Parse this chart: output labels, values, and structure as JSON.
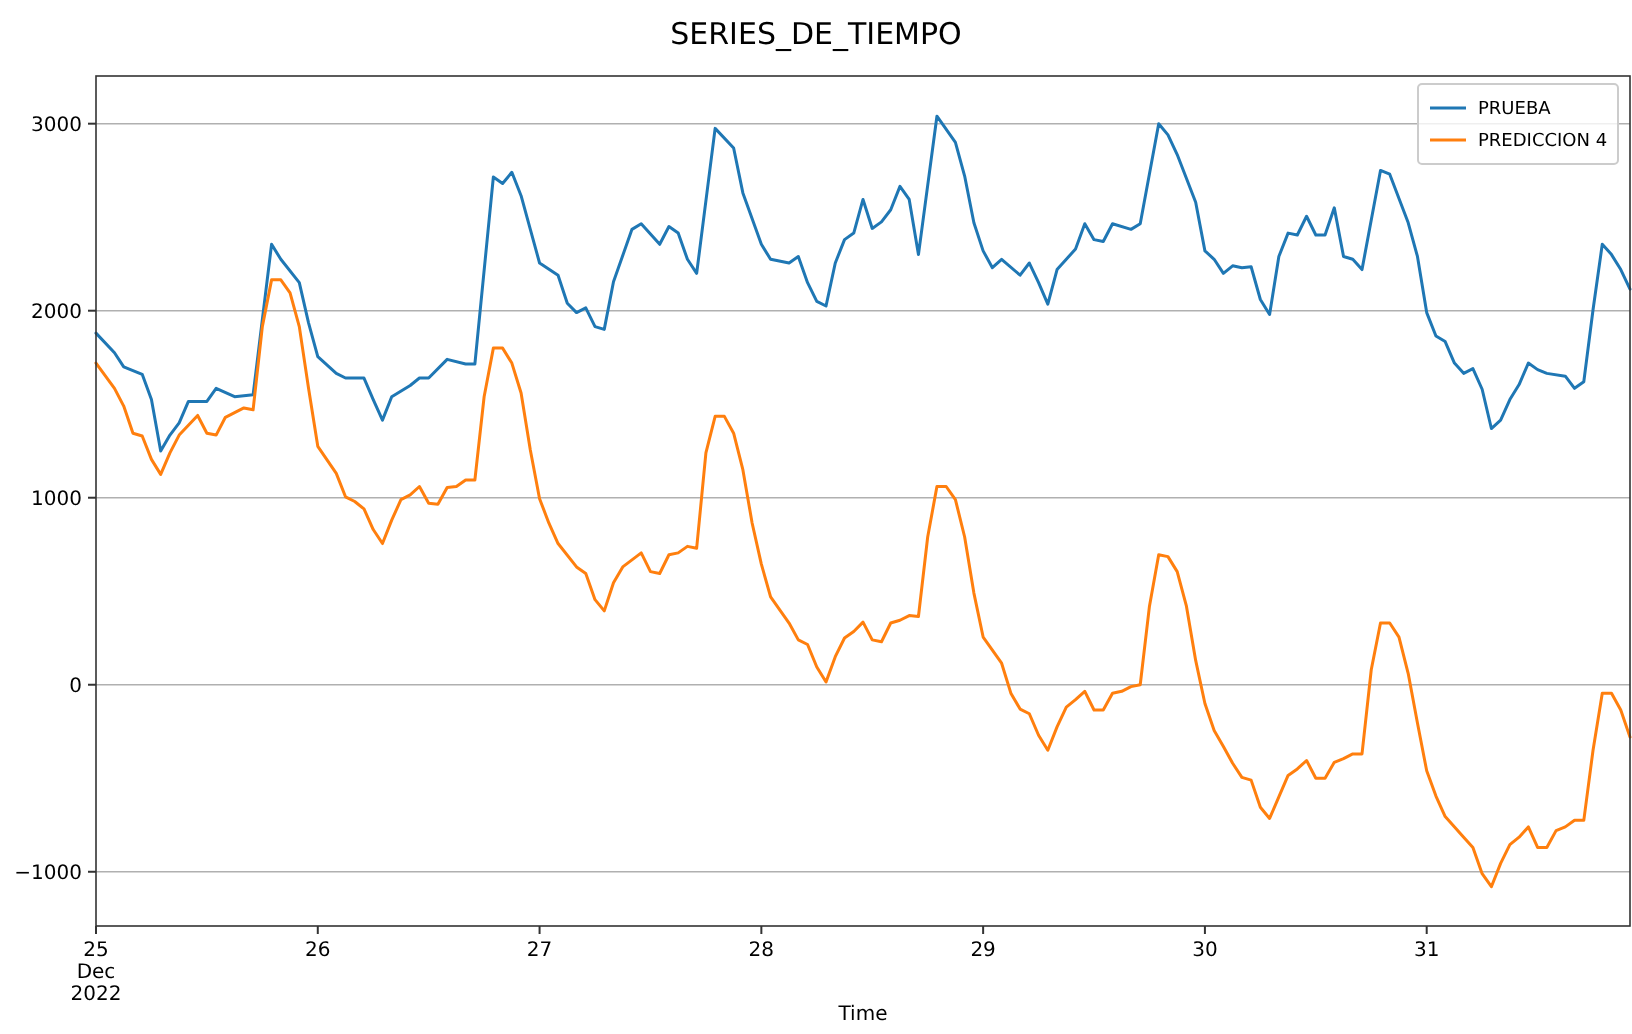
{
  "chart_data": {
    "type": "line",
    "title": "SERIES_DE_TIEMPO",
    "xlabel": "Time",
    "xlim": [
      "2022-12-25T00:00",
      "2022-12-31T22:00"
    ],
    "xticks": [
      {
        "value": "2022-12-25",
        "label": "25\nDec\n2022"
      },
      {
        "value": "2022-12-26",
        "label": "26"
      },
      {
        "value": "2022-12-27",
        "label": "27"
      },
      {
        "value": "2022-12-28",
        "label": "28"
      },
      {
        "value": "2022-12-29",
        "label": "29"
      },
      {
        "value": "2022-12-30",
        "label": "30"
      },
      {
        "value": "2022-12-31",
        "label": "31"
      }
    ],
    "ylim": [
      -1290,
      3255
    ],
    "yticks": [
      -1000,
      0,
      1000,
      2000,
      3000
    ],
    "grid": "y",
    "legend": "top right",
    "line_style": "solid",
    "marker": "none",
    "series": [
      {
        "name": "PRUEBA",
        "color": "#1f77b4",
        "x": [
          "2022-12-25T00:00",
          "2022-12-25T02:00",
          "2022-12-25T03:00",
          "2022-12-25T05:00",
          "2022-12-25T06:00",
          "2022-12-25T07:00",
          "2022-12-25T08:00",
          "2022-12-25T09:00",
          "2022-12-25T10:00",
          "2022-12-25T12:00",
          "2022-12-25T13:00",
          "2022-12-25T15:00",
          "2022-12-25T17:00",
          "2022-12-25T19:00",
          "2022-12-25T20:00",
          "2022-12-25T22:00",
          "2022-12-25T23:00",
          "2022-12-26T00:00",
          "2022-12-26T02:00",
          "2022-12-26T03:00",
          "2022-12-26T05:00",
          "2022-12-26T06:00",
          "2022-12-26T07:00",
          "2022-12-26T08:00",
          "2022-12-26T10:00",
          "2022-12-26T11:00",
          "2022-12-26T12:00",
          "2022-12-26T14:00",
          "2022-12-26T16:00",
          "2022-12-26T17:00",
          "2022-12-26T19:00",
          "2022-12-26T20:00",
          "2022-12-26T21:00",
          "2022-12-26T22:00",
          "2022-12-26T23:00",
          "2022-12-27T00:00",
          "2022-12-27T02:00",
          "2022-12-27T03:00",
          "2022-12-27T04:00",
          "2022-12-27T05:00",
          "2022-12-27T06:00",
          "2022-12-27T07:00",
          "2022-12-27T08:00",
          "2022-12-27T10:00",
          "2022-12-27T11:00",
          "2022-12-27T13:00",
          "2022-12-27T14:00",
          "2022-12-27T15:00",
          "2022-12-27T16:00",
          "2022-12-27T17:00",
          "2022-12-27T19:00",
          "2022-12-27T21:00",
          "2022-12-27T22:00",
          "2022-12-28T00:00",
          "2022-12-28T01:00",
          "2022-12-28T03:00",
          "2022-12-28T04:00",
          "2022-12-28T05:00",
          "2022-12-28T06:00",
          "2022-12-28T07:00",
          "2022-12-28T08:00",
          "2022-12-28T09:00",
          "2022-12-28T10:00",
          "2022-12-28T11:00",
          "2022-12-28T12:00",
          "2022-12-28T13:00",
          "2022-12-28T14:00",
          "2022-12-28T15:00",
          "2022-12-28T16:00",
          "2022-12-28T17:00",
          "2022-12-28T19:00",
          "2022-12-28T21:00",
          "2022-12-28T22:00",
          "2022-12-28T23:00",
          "2022-12-29T00:00",
          "2022-12-29T01:00",
          "2022-12-29T02:00",
          "2022-12-29T04:00",
          "2022-12-29T05:00",
          "2022-12-29T06:00",
          "2022-12-29T07:00",
          "2022-12-29T08:00",
          "2022-12-29T10:00",
          "2022-12-29T11:00",
          "2022-12-29T12:00",
          "2022-12-29T13:00",
          "2022-12-29T14:00",
          "2022-12-29T16:00",
          "2022-12-29T17:00",
          "2022-12-29T19:00",
          "2022-12-29T20:00",
          "2022-12-29T21:00",
          "2022-12-29T23:00",
          "2022-12-30T00:00",
          "2022-12-30T01:00",
          "2022-12-30T02:00",
          "2022-12-30T03:00",
          "2022-12-30T04:00",
          "2022-12-30T05:00",
          "2022-12-30T06:00",
          "2022-12-30T07:00",
          "2022-12-30T08:00",
          "2022-12-30T09:00",
          "2022-12-30T10:00",
          "2022-12-30T11:00",
          "2022-12-30T12:00",
          "2022-12-30T13:00",
          "2022-12-30T14:00",
          "2022-12-30T15:00",
          "2022-12-30T16:00",
          "2022-12-30T17:00",
          "2022-12-30T19:00",
          "2022-12-30T20:00",
          "2022-12-30T22:00",
          "2022-12-30T23:00",
          "2022-12-31T00:00",
          "2022-12-31T01:00",
          "2022-12-31T02:00",
          "2022-12-31T03:00",
          "2022-12-31T04:00",
          "2022-12-31T05:00",
          "2022-12-31T06:00",
          "2022-12-31T07:00",
          "2022-12-31T08:00",
          "2022-12-31T09:00",
          "2022-12-31T10:00",
          "2022-12-31T11:00",
          "2022-12-31T12:00",
          "2022-12-31T13:00",
          "2022-12-31T15:00",
          "2022-12-31T16:00",
          "2022-12-31T17:00",
          "2022-12-31T18:00",
          "2022-12-31T19:00",
          "2022-12-31T20:00",
          "2022-12-31T21:00",
          "2022-12-31T22:00"
        ],
        "values": [
          1880,
          1775,
          1700,
          1660,
          1525,
          1250,
          1335,
          1400,
          1515,
          1515,
          1585,
          1540,
          1550,
          2355,
          2275,
          2150,
          1935,
          1755,
          1665,
          1640,
          1640,
          1525,
          1415,
          1540,
          1600,
          1640,
          1640,
          1740,
          1715,
          1715,
          2715,
          2680,
          2740,
          2615,
          2435,
          2255,
          2190,
          2040,
          1990,
          2015,
          1915,
          1900,
          2155,
          2435,
          2465,
          2355,
          2450,
          2415,
          2275,
          2200,
          2975,
          2870,
          2630,
          2355,
          2275,
          2255,
          2290,
          2150,
          2050,
          2025,
          2255,
          2380,
          2415,
          2595,
          2440,
          2475,
          2540,
          2665,
          2595,
          2300,
          3040,
          2900,
          2720,
          2470,
          2320,
          2230,
          2275,
          2190,
          2255,
          2150,
          2035,
          2220,
          2330,
          2465,
          2380,
          2370,
          2465,
          2435,
          2465,
          3000,
          2940,
          2835,
          2580,
          2320,
          2275,
          2200,
          2240,
          2230,
          2235,
          2060,
          1980,
          2290,
          2415,
          2405,
          2505,
          2405,
          2405,
          2550,
          2290,
          2275,
          2220,
          2750,
          2730,
          2470,
          2290,
          1990,
          1865,
          1835,
          1720,
          1665,
          1690,
          1580,
          1370,
          1415,
          1525,
          1605,
          1720,
          1685,
          1665,
          1650,
          1585,
          1620,
          2005,
          2355,
          2300,
          2220,
          2115
        ]
      },
      {
        "name": "PREDICCION 4",
        "color": "#ff7f0e",
        "x": [
          "2022-12-25T00:00",
          "2022-12-25T02:00",
          "2022-12-25T03:00",
          "2022-12-25T04:00",
          "2022-12-25T05:00",
          "2022-12-25T06:00",
          "2022-12-25T07:00",
          "2022-12-25T08:00",
          "2022-12-25T09:00",
          "2022-12-25T11:00",
          "2022-12-25T12:00",
          "2022-12-25T13:00",
          "2022-12-25T14:00",
          "2022-12-25T15:00",
          "2022-12-25T16:00",
          "2022-12-25T17:00",
          "2022-12-25T18:00",
          "2022-12-25T19:00",
          "2022-12-25T20:00",
          "2022-12-25T21:00",
          "2022-12-25T22:00",
          "2022-12-25T23:00",
          "2022-12-26T00:00",
          "2022-12-26T02:00",
          "2022-12-26T03:00",
          "2022-12-26T04:00",
          "2022-12-26T05:00",
          "2022-12-26T06:00",
          "2022-12-26T07:00",
          "2022-12-26T08:00",
          "2022-12-26T09:00",
          "2022-12-26T10:00",
          "2022-12-26T11:00",
          "2022-12-26T12:00",
          "2022-12-26T13:00",
          "2022-12-26T14:00",
          "2022-12-26T15:00",
          "2022-12-26T16:00",
          "2022-12-26T17:00",
          "2022-12-26T18:00",
          "2022-12-26T19:00",
          "2022-12-26T20:00",
          "2022-12-26T21:00",
          "2022-12-26T22:00",
          "2022-12-26T23:00",
          "2022-12-27T00:00",
          "2022-12-27T01:00",
          "2022-12-27T02:00",
          "2022-12-27T04:00",
          "2022-12-27T05:00",
          "2022-12-27T06:00",
          "2022-12-27T07:00",
          "2022-12-27T08:00",
          "2022-12-27T09:00",
          "2022-12-27T11:00",
          "2022-12-27T12:00",
          "2022-12-27T13:00",
          "2022-12-27T14:00",
          "2022-12-27T15:00",
          "2022-12-27T16:00",
          "2022-12-27T17:00",
          "2022-12-27T18:00",
          "2022-12-27T19:00",
          "2022-12-27T20:00",
          "2022-12-27T21:00",
          "2022-12-27T22:00",
          "2022-12-27T23:00",
          "2022-12-28T00:00",
          "2022-12-28T01:00",
          "2022-12-28T03:00",
          "2022-12-28T04:00",
          "2022-12-28T05:00",
          "2022-12-28T06:00",
          "2022-12-28T07:00",
          "2022-12-28T08:00",
          "2022-12-28T09:00",
          "2022-12-28T10:00",
          "2022-12-28T11:00",
          "2022-12-28T12:00",
          "2022-12-28T13:00",
          "2022-12-28T14:00",
          "2022-12-28T15:00",
          "2022-12-28T16:00",
          "2022-12-28T17:00",
          "2022-12-28T18:00",
          "2022-12-28T19:00",
          "2022-12-28T20:00",
          "2022-12-28T21:00",
          "2022-12-28T22:00",
          "2022-12-28T23:00",
          "2022-12-29T00:00",
          "2022-12-29T02:00",
          "2022-12-29T03:00",
          "2022-12-29T04:00",
          "2022-12-29T05:00",
          "2022-12-29T06:00",
          "2022-12-29T07:00",
          "2022-12-29T08:00",
          "2022-12-29T09:00",
          "2022-12-29T10:00",
          "2022-12-29T11:00",
          "2022-12-29T12:00",
          "2022-12-29T13:00",
          "2022-12-29T14:00",
          "2022-12-29T15:00",
          "2022-12-29T16:00",
          "2022-12-29T17:00",
          "2022-12-29T18:00",
          "2022-12-29T19:00",
          "2022-12-29T20:00",
          "2022-12-29T21:00",
          "2022-12-29T22:00",
          "2022-12-29T23:00",
          "2022-12-30T00:00",
          "2022-12-30T01:00",
          "2022-12-30T02:00",
          "2022-12-30T03:00",
          "2022-12-30T04:00",
          "2022-12-30T05:00",
          "2022-12-30T06:00",
          "2022-12-30T07:00",
          "2022-12-30T08:00",
          "2022-12-30T09:00",
          "2022-12-30T10:00",
          "2022-12-30T11:00",
          "2022-12-30T12:00",
          "2022-12-30T13:00",
          "2022-12-30T14:00",
          "2022-12-30T15:00",
          "2022-12-30T16:00",
          "2022-12-30T17:00",
          "2022-12-30T18:00",
          "2022-12-30T19:00",
          "2022-12-30T20:00",
          "2022-12-30T21:00",
          "2022-12-30T22:00",
          "2022-12-30T23:00",
          "2022-12-31T00:00",
          "2022-12-31T01:00",
          "2022-12-31T02:00",
          "2022-12-31T04:00",
          "2022-12-31T05:00",
          "2022-12-31T06:00",
          "2022-12-31T07:00",
          "2022-12-31T08:00",
          "2022-12-31T09:00",
          "2022-12-31T10:00",
          "2022-12-31T11:00",
          "2022-12-31T12:00",
          "2022-12-31T13:00",
          "2022-12-31T14:00",
          "2022-12-31T15:00",
          "2022-12-31T16:00",
          "2022-12-31T17:00",
          "2022-12-31T18:00",
          "2022-12-31T19:00",
          "2022-12-31T20:00",
          "2022-12-31T21:00",
          "2022-12-31T22:00"
        ],
        "values": [
          1720,
          1585,
          1490,
          1345,
          1330,
          1205,
          1125,
          1240,
          1335,
          1440,
          1345,
          1335,
          1430,
          1455,
          1480,
          1470,
          1915,
          2165,
          2165,
          2095,
          1915,
          1585,
          1275,
          1130,
          1005,
          980,
          940,
          830,
          755,
          880,
          990,
          1015,
          1060,
          970,
          965,
          1055,
          1060,
          1095,
          1095,
          1540,
          1800,
          1800,
          1720,
          1560,
          1255,
          995,
          865,
          755,
          630,
          595,
          455,
          395,
          545,
          630,
          705,
          605,
          595,
          695,
          705,
          740,
          730,
          1240,
          1435,
          1435,
          1345,
          1150,
          865,
          645,
          470,
          330,
          240,
          215,
          95,
          15,
          150,
          250,
          285,
          335,
          240,
          230,
          330,
          345,
          370,
          365,
          790,
          1060,
          1060,
          990,
          790,
          490,
          255,
          115,
          -45,
          -130,
          -155,
          -270,
          -350,
          -225,
          -120,
          -80,
          -35,
          -135,
          -135,
          -45,
          -35,
          -10,
          0,
          420,
          695,
          685,
          605,
          420,
          130,
          -100,
          -245,
          -330,
          -420,
          -495,
          -510,
          -655,
          -715,
          -600,
          -485,
          -450,
          -405,
          -500,
          -500,
          -415,
          -395,
          -370,
          -370,
          80,
          330,
          330,
          255,
          60,
          -205,
          -460,
          -595,
          -705,
          -815,
          -870,
          -1010,
          -1080,
          -955,
          -855,
          -815,
          -760,
          -870,
          -870,
          -780,
          -760,
          -725,
          -725,
          -350,
          -45,
          -45,
          -135,
          -280
        ]
      }
    ]
  }
}
